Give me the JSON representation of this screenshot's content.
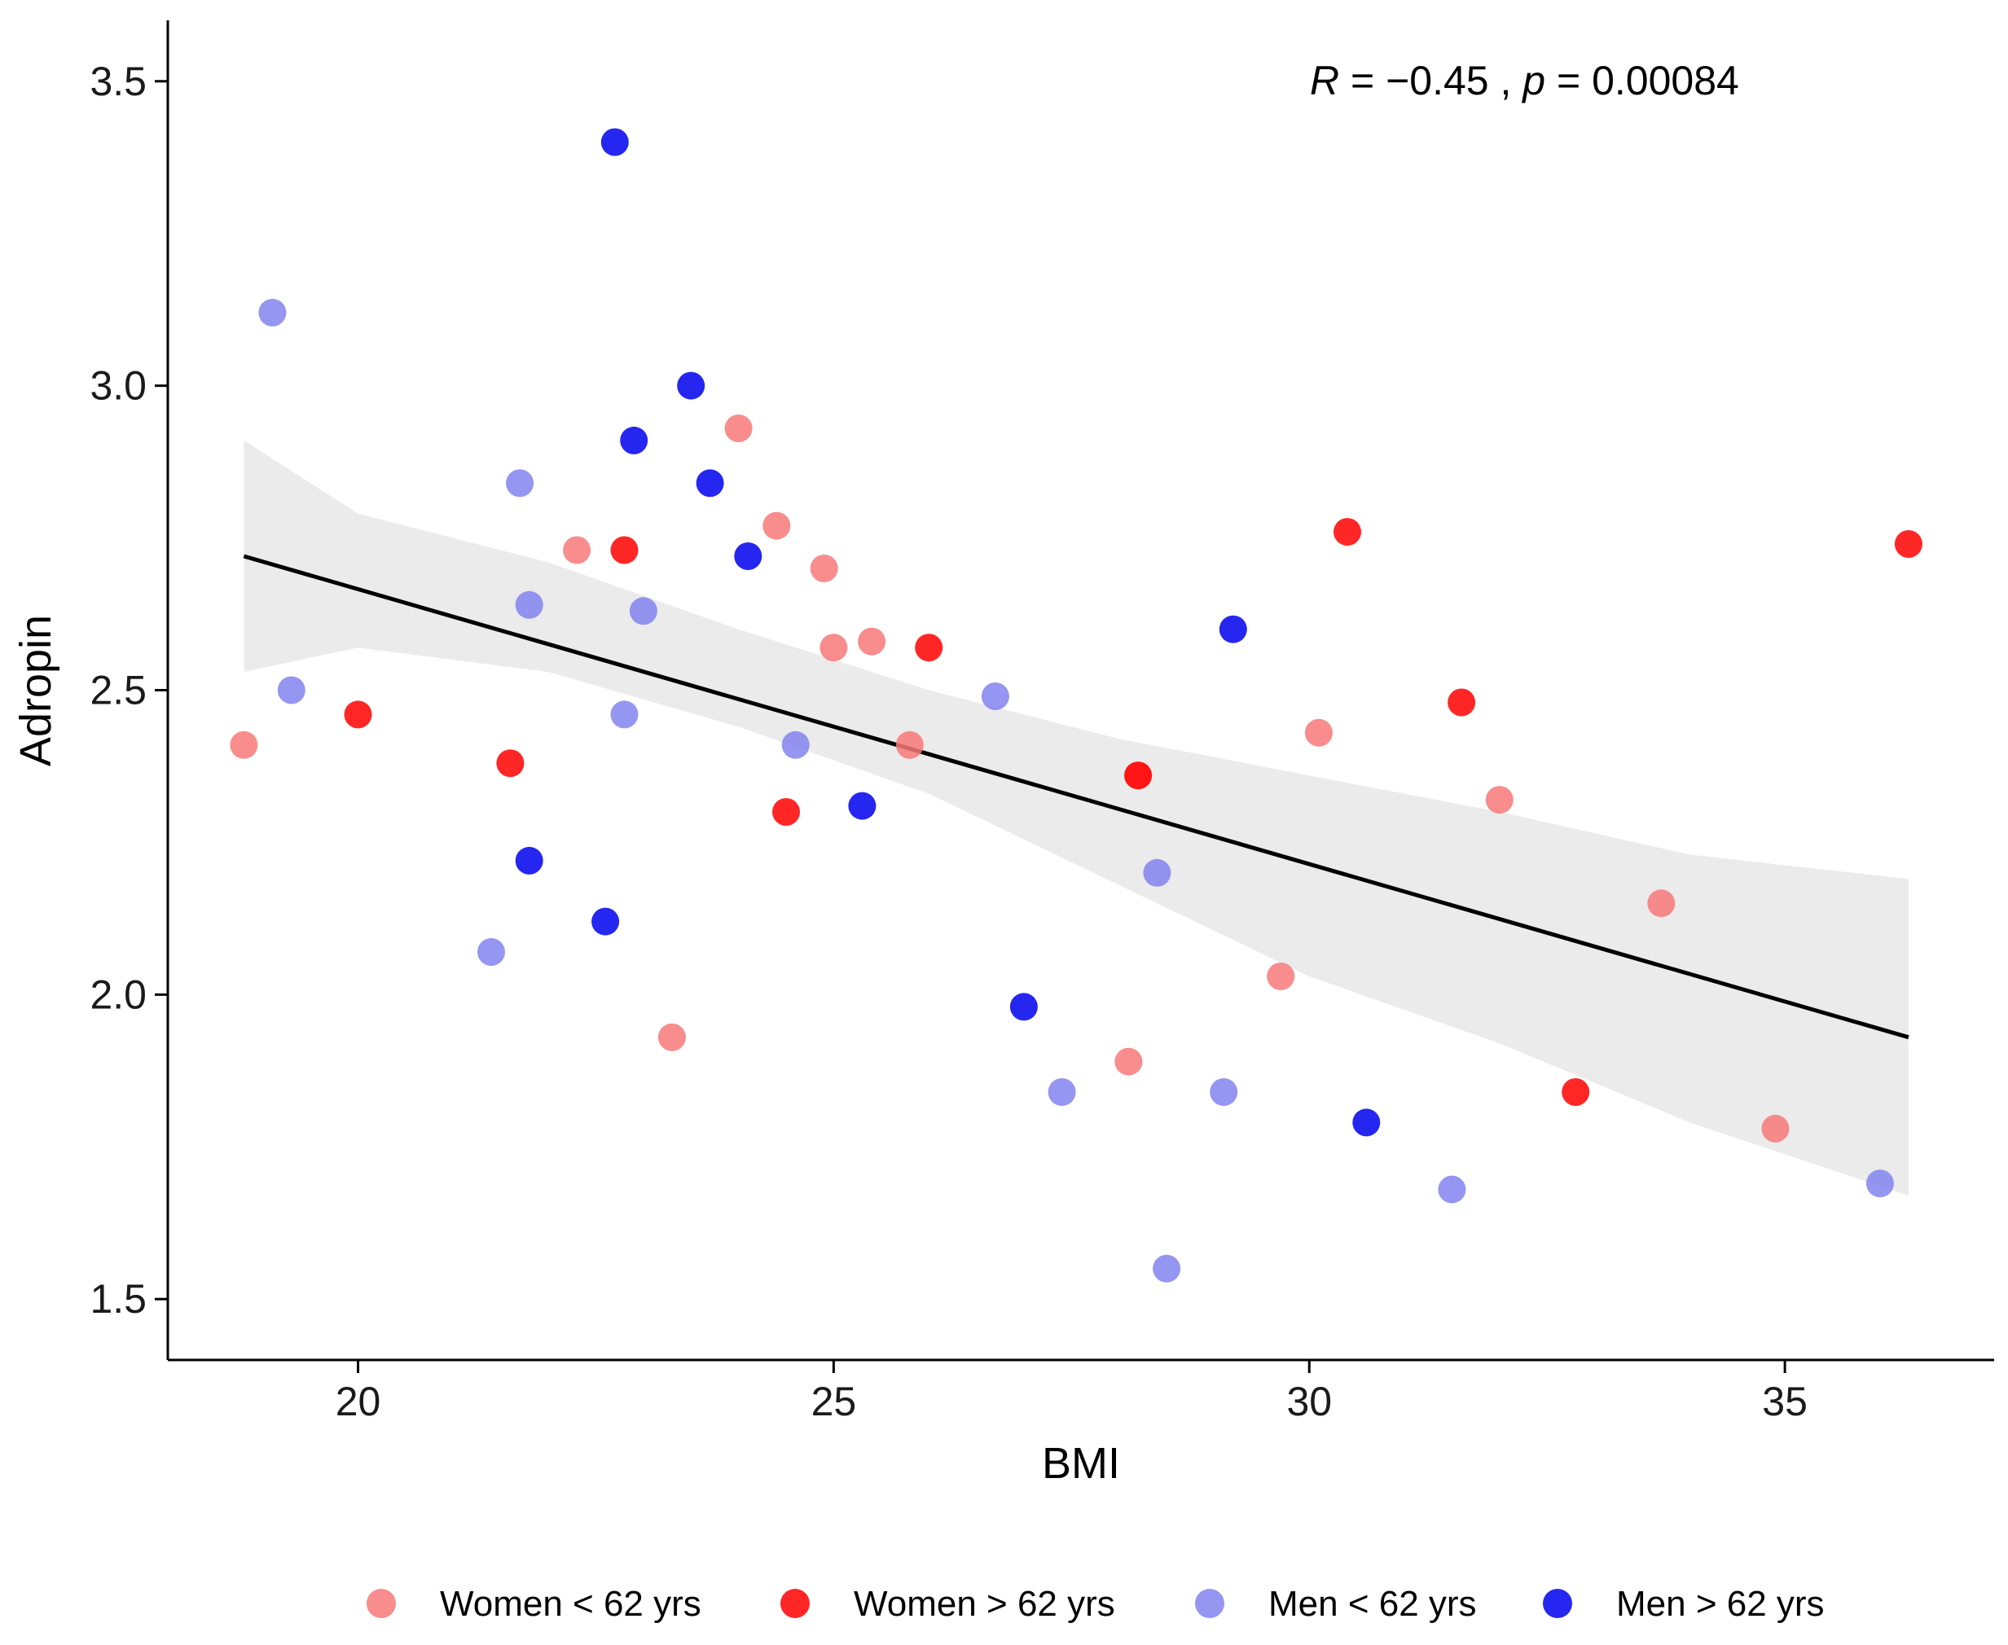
{
  "chart_data": {
    "type": "scatter",
    "title": "",
    "xlabel": "BMI",
    "ylabel": "Adropin",
    "xlim": [
      18.0,
      37.2
    ],
    "ylim": [
      1.4,
      3.6
    ],
    "x_ticks": [
      20,
      25,
      30,
      35
    ],
    "y_ticks": [
      1.5,
      2.0,
      2.5,
      3.0,
      3.5
    ],
    "x_tick_labels": [
      "20",
      "25",
      "30",
      "35"
    ],
    "y_tick_labels": [
      "1.5",
      "2.0",
      "2.5",
      "3.0",
      "3.5"
    ],
    "annotation": {
      "r_symbol": "R",
      "r_text": " = −0.45 , ",
      "p_symbol": "p",
      "p_text": " = 0.00084"
    },
    "legend_position": "bottom",
    "series": [
      {
        "name": "Women < 62 yrs",
        "color": "#f87878",
        "points": [
          [
            18.8,
            2.41
          ],
          [
            22.3,
            2.73
          ],
          [
            23.3,
            1.93
          ],
          [
            24.0,
            2.93
          ],
          [
            24.4,
            2.77
          ],
          [
            24.9,
            2.7
          ],
          [
            25.0,
            2.57
          ],
          [
            25.4,
            2.58
          ],
          [
            25.8,
            2.41
          ],
          [
            28.1,
            1.89
          ],
          [
            28.2,
            2.36
          ],
          [
            29.7,
            2.03
          ],
          [
            30.1,
            2.43
          ],
          [
            32.0,
            2.32
          ],
          [
            33.7,
            2.15
          ],
          [
            34.9,
            1.78
          ]
        ]
      },
      {
        "name": "Women > 62 yrs",
        "color": "#ff0000",
        "points": [
          [
            20.0,
            2.46
          ],
          [
            21.6,
            2.38
          ],
          [
            22.8,
            2.73
          ],
          [
            24.5,
            2.3
          ],
          [
            26.0,
            2.57
          ],
          [
            28.2,
            2.36
          ],
          [
            30.4,
            2.76
          ],
          [
            31.6,
            2.48
          ],
          [
            32.8,
            1.84
          ],
          [
            36.3,
            2.74
          ]
        ]
      },
      {
        "name": "Men < 62 yrs",
        "color": "#8282f0",
        "points": [
          [
            19.1,
            3.12
          ],
          [
            19.3,
            2.5
          ],
          [
            21.4,
            2.07
          ],
          [
            21.7,
            2.84
          ],
          [
            21.8,
            2.64
          ],
          [
            22.8,
            2.46
          ],
          [
            23.0,
            2.63
          ],
          [
            24.6,
            2.41
          ],
          [
            26.7,
            2.49
          ],
          [
            27.4,
            1.84
          ],
          [
            28.4,
            2.2
          ],
          [
            28.5,
            1.55
          ],
          [
            29.1,
            1.84
          ],
          [
            31.5,
            1.68
          ],
          [
            36.0,
            1.69
          ]
        ]
      },
      {
        "name": "Men > 62 yrs",
        "color": "#0000ee",
        "points": [
          [
            21.8,
            2.22
          ],
          [
            22.6,
            2.12
          ],
          [
            22.7,
            3.4
          ],
          [
            22.9,
            2.91
          ],
          [
            23.5,
            3.0
          ],
          [
            23.7,
            2.84
          ],
          [
            24.1,
            2.72
          ],
          [
            25.3,
            2.31
          ],
          [
            27.0,
            1.98
          ],
          [
            29.2,
            2.6
          ],
          [
            30.6,
            1.79
          ]
        ]
      }
    ],
    "regression": {
      "x_start": 18.8,
      "y_start": 2.72,
      "x_end": 36.3,
      "y_end": 1.93,
      "ci_band": [
        [
          18.8,
          2.53,
          2.91
        ],
        [
          20.0,
          2.57,
          2.79
        ],
        [
          22.0,
          2.53,
          2.71
        ],
        [
          24.0,
          2.44,
          2.6
        ],
        [
          26.0,
          2.33,
          2.5
        ],
        [
          28.0,
          2.18,
          2.42
        ],
        [
          30.0,
          2.03,
          2.36
        ],
        [
          32.0,
          1.92,
          2.3
        ],
        [
          34.0,
          1.79,
          2.23
        ],
        [
          36.3,
          1.67,
          2.19
        ]
      ],
      "line_color": "#000000",
      "band_color": "#ebebeb"
    }
  }
}
